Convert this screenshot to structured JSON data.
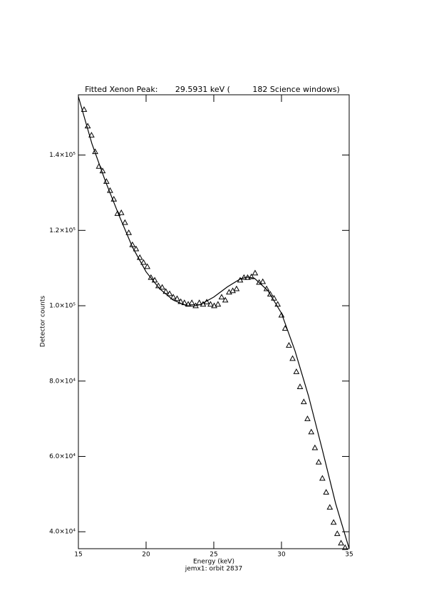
{
  "chart_data": {
    "type": "scatter",
    "title": "Fitted Xenon Peak:       29.5931 keV (         182 Science windows)",
    "x_label": "Energy (keV)",
    "y_label": "Detector counts",
    "footnote": "jemx1: orbit 2837",
    "xlim": [
      15,
      35
    ],
    "xticks": [
      15,
      20,
      25,
      30,
      35
    ],
    "ylim": [
      35500,
      156000
    ],
    "yticks": [
      {
        "value": 40000,
        "label": "4.0×10⁴"
      },
      {
        "value": 60000,
        "label": "6.0×10⁴"
      },
      {
        "value": 80000,
        "label": "8.0×10⁴"
      },
      {
        "value": 100000,
        "label": "1.0×10⁵"
      },
      {
        "value": 120000,
        "label": "1.2×10⁵"
      },
      {
        "value": 140000,
        "label": "1.4×10⁵"
      }
    ],
    "series": [
      {
        "marker": "triangle",
        "color": "#000000",
        "x": [
          15.42,
          15.69,
          15.97,
          16.24,
          16.52,
          16.79,
          17.07,
          17.34,
          17.62,
          17.89,
          18.17,
          18.44,
          18.72,
          18.99,
          19.26,
          19.54,
          19.81,
          20.09,
          20.36,
          20.64,
          20.91,
          21.19,
          21.46,
          21.74,
          22.01,
          22.29,
          22.56,
          22.83,
          23.11,
          23.38,
          23.66,
          23.93,
          24.21,
          24.48,
          24.76,
          25.03,
          25.31,
          25.58,
          25.85,
          26.13,
          26.4,
          26.68,
          26.95,
          27.23,
          27.5,
          27.78,
          28.05,
          28.35,
          28.62,
          28.9,
          29.17,
          29.45,
          29.72,
          30.0,
          30.27,
          30.55,
          30.82,
          31.1,
          31.37,
          31.65,
          31.92,
          32.2,
          32.47,
          32.75,
          33.02,
          33.3,
          33.57,
          33.85,
          34.12,
          34.4,
          34.7
        ],
        "values": [
          152100,
          147700,
          145300,
          140900,
          137000,
          135800,
          133000,
          130600,
          128300,
          124500,
          124700,
          122100,
          119400,
          116200,
          115100,
          112800,
          111500,
          110400,
          107500,
          106800,
          105300,
          104900,
          103800,
          103200,
          102300,
          101900,
          101100,
          100800,
          100400,
          100800,
          100000,
          100800,
          100400,
          101000,
          100400,
          100000,
          100400,
          102300,
          101500,
          103600,
          104000,
          104500,
          106800,
          107500,
          107500,
          107700,
          108700,
          106200,
          106400,
          104500,
          103100,
          102000,
          100400,
          97500,
          94000,
          89500,
          86000,
          82500,
          78500,
          74500,
          70000,
          66500,
          62300,
          58500,
          54200,
          50500,
          46500,
          42500,
          39500,
          37000,
          35800
        ]
      },
      {
        "marker": "line",
        "color": "#000000",
        "x": [
          15,
          16,
          17,
          18,
          19,
          20,
          21,
          22,
          23,
          23.5,
          24,
          25,
          26,
          27,
          27.5,
          28,
          29,
          30,
          31,
          32,
          33,
          34,
          35
        ],
        "values": [
          155500,
          143000,
          133000,
          124000,
          115500,
          109000,
          104500,
          101500,
          100000,
          99900,
          100300,
          102300,
          105000,
          107200,
          107600,
          107300,
          104000,
          98000,
          88000,
          76000,
          62000,
          47500,
          35500
        ]
      }
    ]
  }
}
